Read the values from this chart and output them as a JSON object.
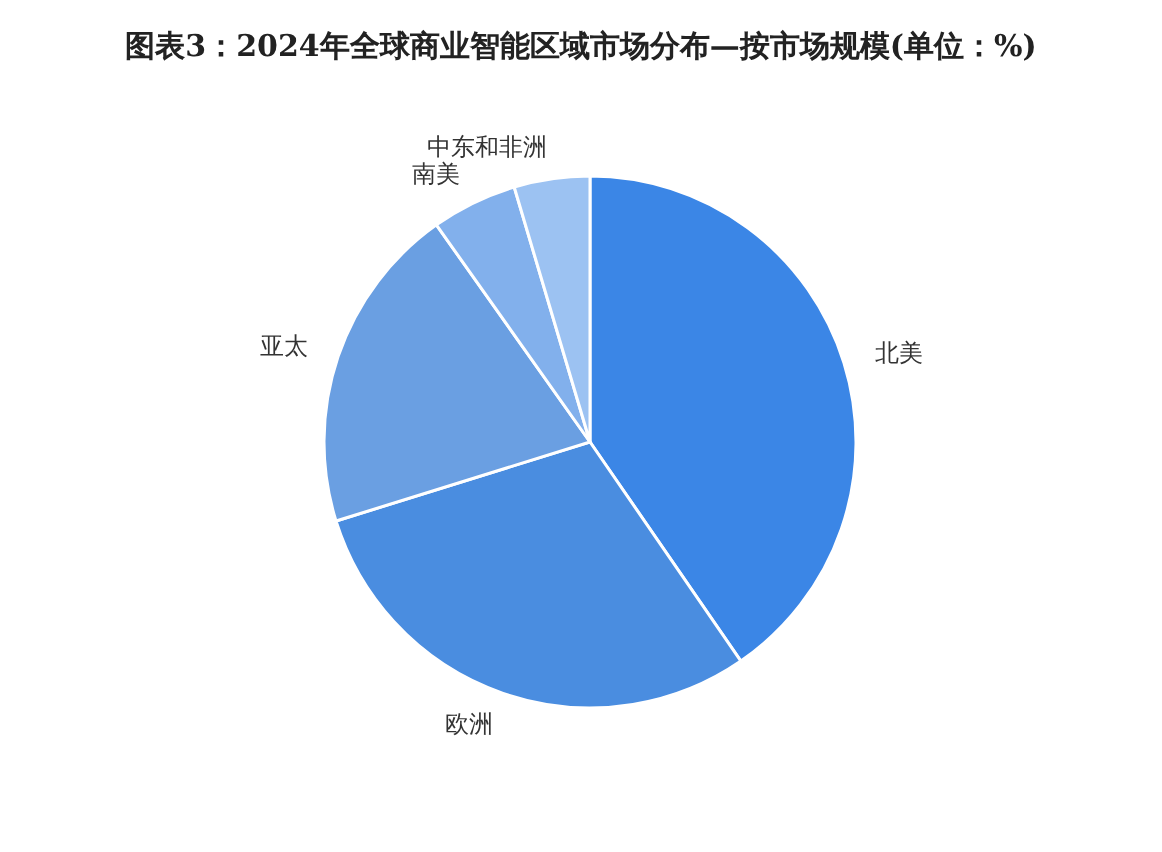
{
  "chart_data": {
    "type": "pie",
    "title": "图表3：2024年全球商业智能区域市场分布—按市场规模(单位：%)",
    "categories": [
      "北美",
      "欧洲",
      "亚太",
      "南美",
      "中东和非洲"
    ],
    "values": [
      40.4,
      29.8,
      20.0,
      5.2,
      4.6
    ],
    "colors": [
      "#3b86e6",
      "#4a8de0",
      "#6a9fe2",
      "#82b0ec",
      "#9cc2f2"
    ]
  }
}
